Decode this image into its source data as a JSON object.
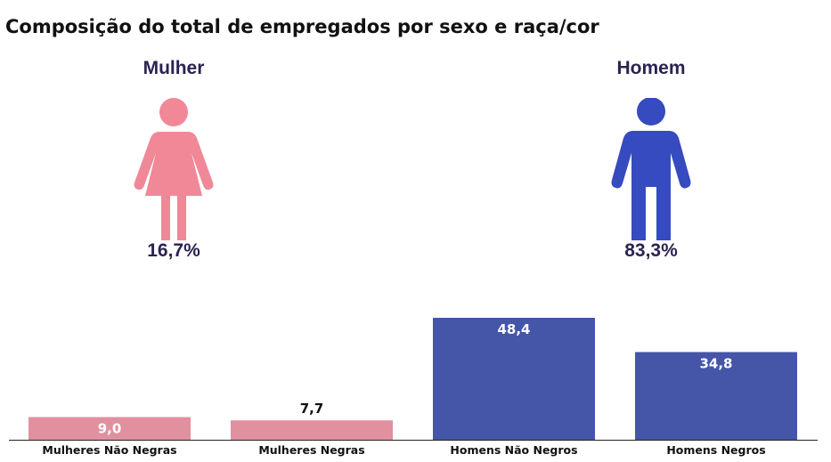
{
  "title": "Composição do total de empregados por sexo e raça/cor",
  "figures": [
    {
      "label": "Mulher",
      "percent": "16,7%",
      "icon": "woman-icon",
      "color": "#f08898"
    },
    {
      "label": "Homem",
      "percent": "83,3%",
      "icon": "man-icon",
      "color": "#354bbf"
    }
  ],
  "text_color": "#2b2350",
  "chart_data": {
    "type": "bar",
    "categories": [
      "Mulheres Não Negras",
      "Mulheres Negras",
      "Homens Não Negros",
      "Homens Negros"
    ],
    "values": [
      9.0,
      7.7,
      48.4,
      34.8
    ],
    "value_labels": [
      "9,0",
      "7,7",
      "48,4",
      "34,8"
    ],
    "colors": [
      "#e0909f",
      "#e0909f",
      "#4555a8",
      "#4555a8"
    ],
    "ylim": [
      0,
      50
    ],
    "grid": false,
    "legend": "none"
  }
}
